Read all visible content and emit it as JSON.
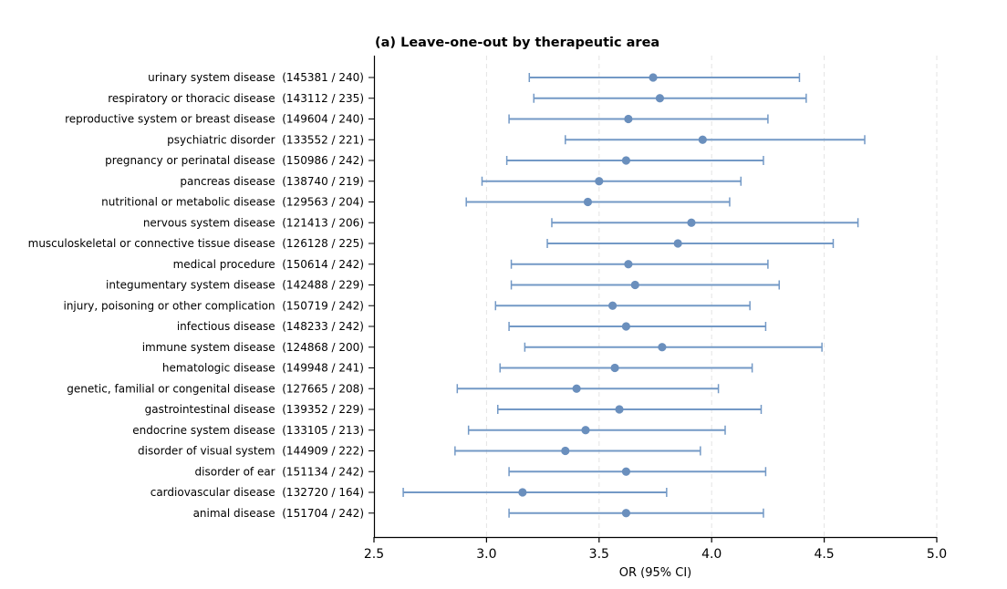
{
  "chart_data": {
    "type": "scatter",
    "title": "(a) Leave-one-out by therapeutic area",
    "xlabel": "OR (95% CI)",
    "ylabel": "",
    "xlim": [
      2.5,
      5.0
    ],
    "xticks": [
      "2.5",
      "3.0",
      "3.5",
      "4.0",
      "4.5",
      "5.0"
    ],
    "grid": "vertical dashed",
    "colors": {
      "marker": "#6a8fbd",
      "errorbar": "#7399c6",
      "grid": "#e3e3e3",
      "axis": "#000000"
    },
    "categories": [
      "urinary system disease  (145381 / 240)",
      "respiratory or thoracic disease  (143112 / 235)",
      "reproductive system or breast disease  (149604 / 240)",
      "psychiatric disorder  (133552 / 221)",
      "pregnancy or perinatal disease  (150986 / 242)",
      "pancreas disease  (138740 / 219)",
      "nutritional or metabolic disease  (129563 / 204)",
      "nervous system disease  (121413 / 206)",
      "musculoskeletal or connective tissue disease  (126128 / 225)",
      "medical procedure  (150614 / 242)",
      "integumentary system disease  (142488 / 229)",
      "injury, poisoning or other complication  (150719 / 242)",
      "infectious disease  (148233 / 242)",
      "immune system disease  (124868 / 200)",
      "hematologic disease  (149948 / 241)",
      "genetic, familial or congenital disease  (127665 / 208)",
      "gastrointestinal disease  (139352 / 229)",
      "endocrine system disease  (133105 / 213)",
      "disorder of visual system  (144909 / 222)",
      "disorder of ear  (151134 / 242)",
      "cardiovascular disease  (132720 / 164)",
      "animal disease  (151704 / 242)"
    ],
    "or": [
      3.74,
      3.77,
      3.63,
      3.96,
      3.62,
      3.5,
      3.45,
      3.91,
      3.85,
      3.63,
      3.66,
      3.56,
      3.62,
      3.78,
      3.57,
      3.4,
      3.59,
      3.44,
      3.35,
      3.62,
      3.16,
      3.62
    ],
    "ci_low": [
      3.19,
      3.21,
      3.1,
      3.35,
      3.09,
      2.98,
      2.91,
      3.29,
      3.27,
      3.11,
      3.11,
      3.04,
      3.1,
      3.17,
      3.06,
      2.87,
      3.05,
      2.92,
      2.86,
      3.1,
      2.63,
      3.1
    ],
    "ci_high": [
      4.39,
      4.42,
      4.25,
      4.68,
      4.23,
      4.13,
      4.08,
      4.65,
      4.54,
      4.25,
      4.3,
      4.17,
      4.24,
      4.49,
      4.18,
      4.03,
      4.22,
      4.06,
      3.95,
      4.24,
      3.8,
      4.23
    ]
  }
}
